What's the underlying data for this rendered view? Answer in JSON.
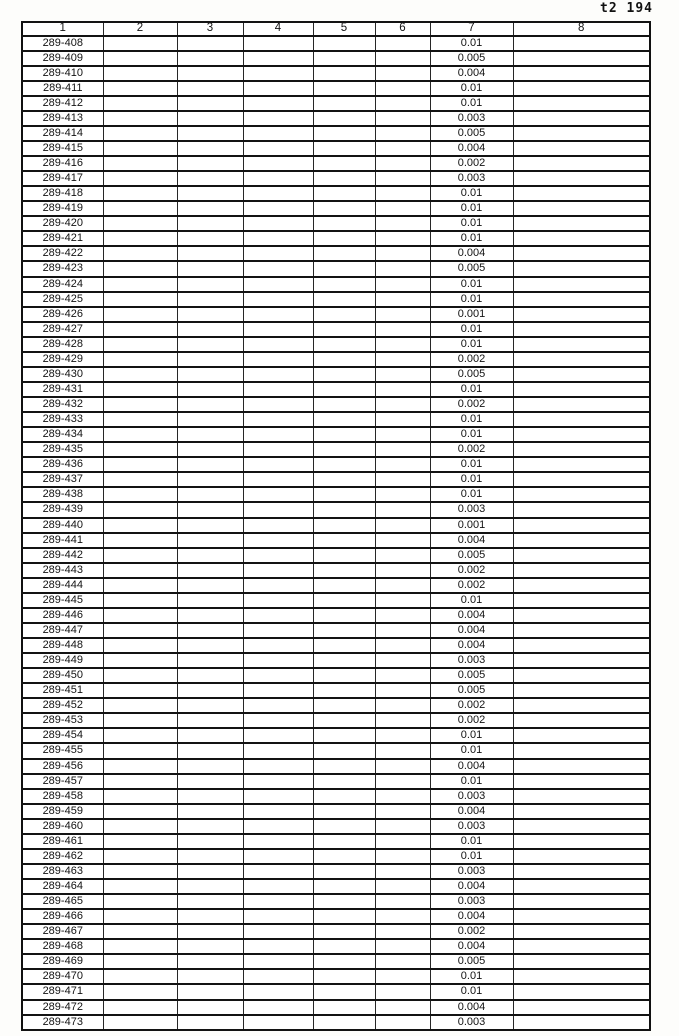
{
  "page_header": "t2 194",
  "table": {
    "columns": [
      "1",
      "2",
      "3",
      "4",
      "5",
      "6",
      "7",
      "8"
    ],
    "rows": [
      {
        "id": "289-408",
        "value": "0.01"
      },
      {
        "id": "289-409",
        "value": "0.005"
      },
      {
        "id": "289-410",
        "value": "0.004"
      },
      {
        "id": "289-411",
        "value": "0.01"
      },
      {
        "id": "289-412",
        "value": "0.01"
      },
      {
        "id": "289-413",
        "value": "0.003"
      },
      {
        "id": "289-414",
        "value": "0.005"
      },
      {
        "id": "289-415",
        "value": "0.004"
      },
      {
        "id": "289-416",
        "value": "0.002"
      },
      {
        "id": "289-417",
        "value": "0.003"
      },
      {
        "id": "289-418",
        "value": "0.01"
      },
      {
        "id": "289-419",
        "value": "0.01"
      },
      {
        "id": "289-420",
        "value": "0.01"
      },
      {
        "id": "289-421",
        "value": "0.01"
      },
      {
        "id": "289-422",
        "value": "0.004"
      },
      {
        "id": "289-423",
        "value": "0.005"
      },
      {
        "id": "289-424",
        "value": "0.01"
      },
      {
        "id": "289-425",
        "value": "0.01"
      },
      {
        "id": "289-426",
        "value": "0.001"
      },
      {
        "id": "289-427",
        "value": "0.01"
      },
      {
        "id": "289-428",
        "value": "0.01"
      },
      {
        "id": "289-429",
        "value": "0.002"
      },
      {
        "id": "289-430",
        "value": "0.005"
      },
      {
        "id": "289-431",
        "value": "0.01"
      },
      {
        "id": "289-432",
        "value": "0.002"
      },
      {
        "id": "289-433",
        "value": "0.01"
      },
      {
        "id": "289-434",
        "value": "0.01"
      },
      {
        "id": "289-435",
        "value": "0.002"
      },
      {
        "id": "289-436",
        "value": "0.01"
      },
      {
        "id": "289-437",
        "value": "0.01"
      },
      {
        "id": "289-438",
        "value": "0.01"
      },
      {
        "id": "289-439",
        "value": "0.003"
      },
      {
        "id": "289-440",
        "value": "0.001"
      },
      {
        "id": "289-441",
        "value": "0.004"
      },
      {
        "id": "289-442",
        "value": "0.005"
      },
      {
        "id": "289-443",
        "value": "0.002"
      },
      {
        "id": "289-444",
        "value": "0.002"
      },
      {
        "id": "289-445",
        "value": "0.01"
      },
      {
        "id": "289-446",
        "value": "0.004"
      },
      {
        "id": "289-447",
        "value": "0.004"
      },
      {
        "id": "289-448",
        "value": "0.004"
      },
      {
        "id": "289-449",
        "value": "0.003"
      },
      {
        "id": "289-450",
        "value": "0.005"
      },
      {
        "id": "289-451",
        "value": "0.005"
      },
      {
        "id": "289-452",
        "value": "0.002"
      },
      {
        "id": "289-453",
        "value": "0.002"
      },
      {
        "id": "289-454",
        "value": "0.01"
      },
      {
        "id": "289-455",
        "value": "0.01"
      },
      {
        "id": "289-456",
        "value": "0.004"
      },
      {
        "id": "289-457",
        "value": "0.01"
      },
      {
        "id": "289-458",
        "value": "0.003"
      },
      {
        "id": "289-459",
        "value": "0.004"
      },
      {
        "id": "289-460",
        "value": "0.003"
      },
      {
        "id": "289-461",
        "value": "0.01"
      },
      {
        "id": "289-462",
        "value": "0.01"
      },
      {
        "id": "289-463",
        "value": "0.003"
      },
      {
        "id": "289-464",
        "value": "0.004"
      },
      {
        "id": "289-465",
        "value": "0.003"
      },
      {
        "id": "289-466",
        "value": "0.004"
      },
      {
        "id": "289-467",
        "value": "0.002"
      },
      {
        "id": "289-468",
        "value": "0.004"
      },
      {
        "id": "289-469",
        "value": "0.005"
      },
      {
        "id": "289-470",
        "value": "0.01"
      },
      {
        "id": "289-471",
        "value": "0.01"
      },
      {
        "id": "289-472",
        "value": "0.004"
      },
      {
        "id": "289-473",
        "value": "0.003"
      }
    ]
  }
}
